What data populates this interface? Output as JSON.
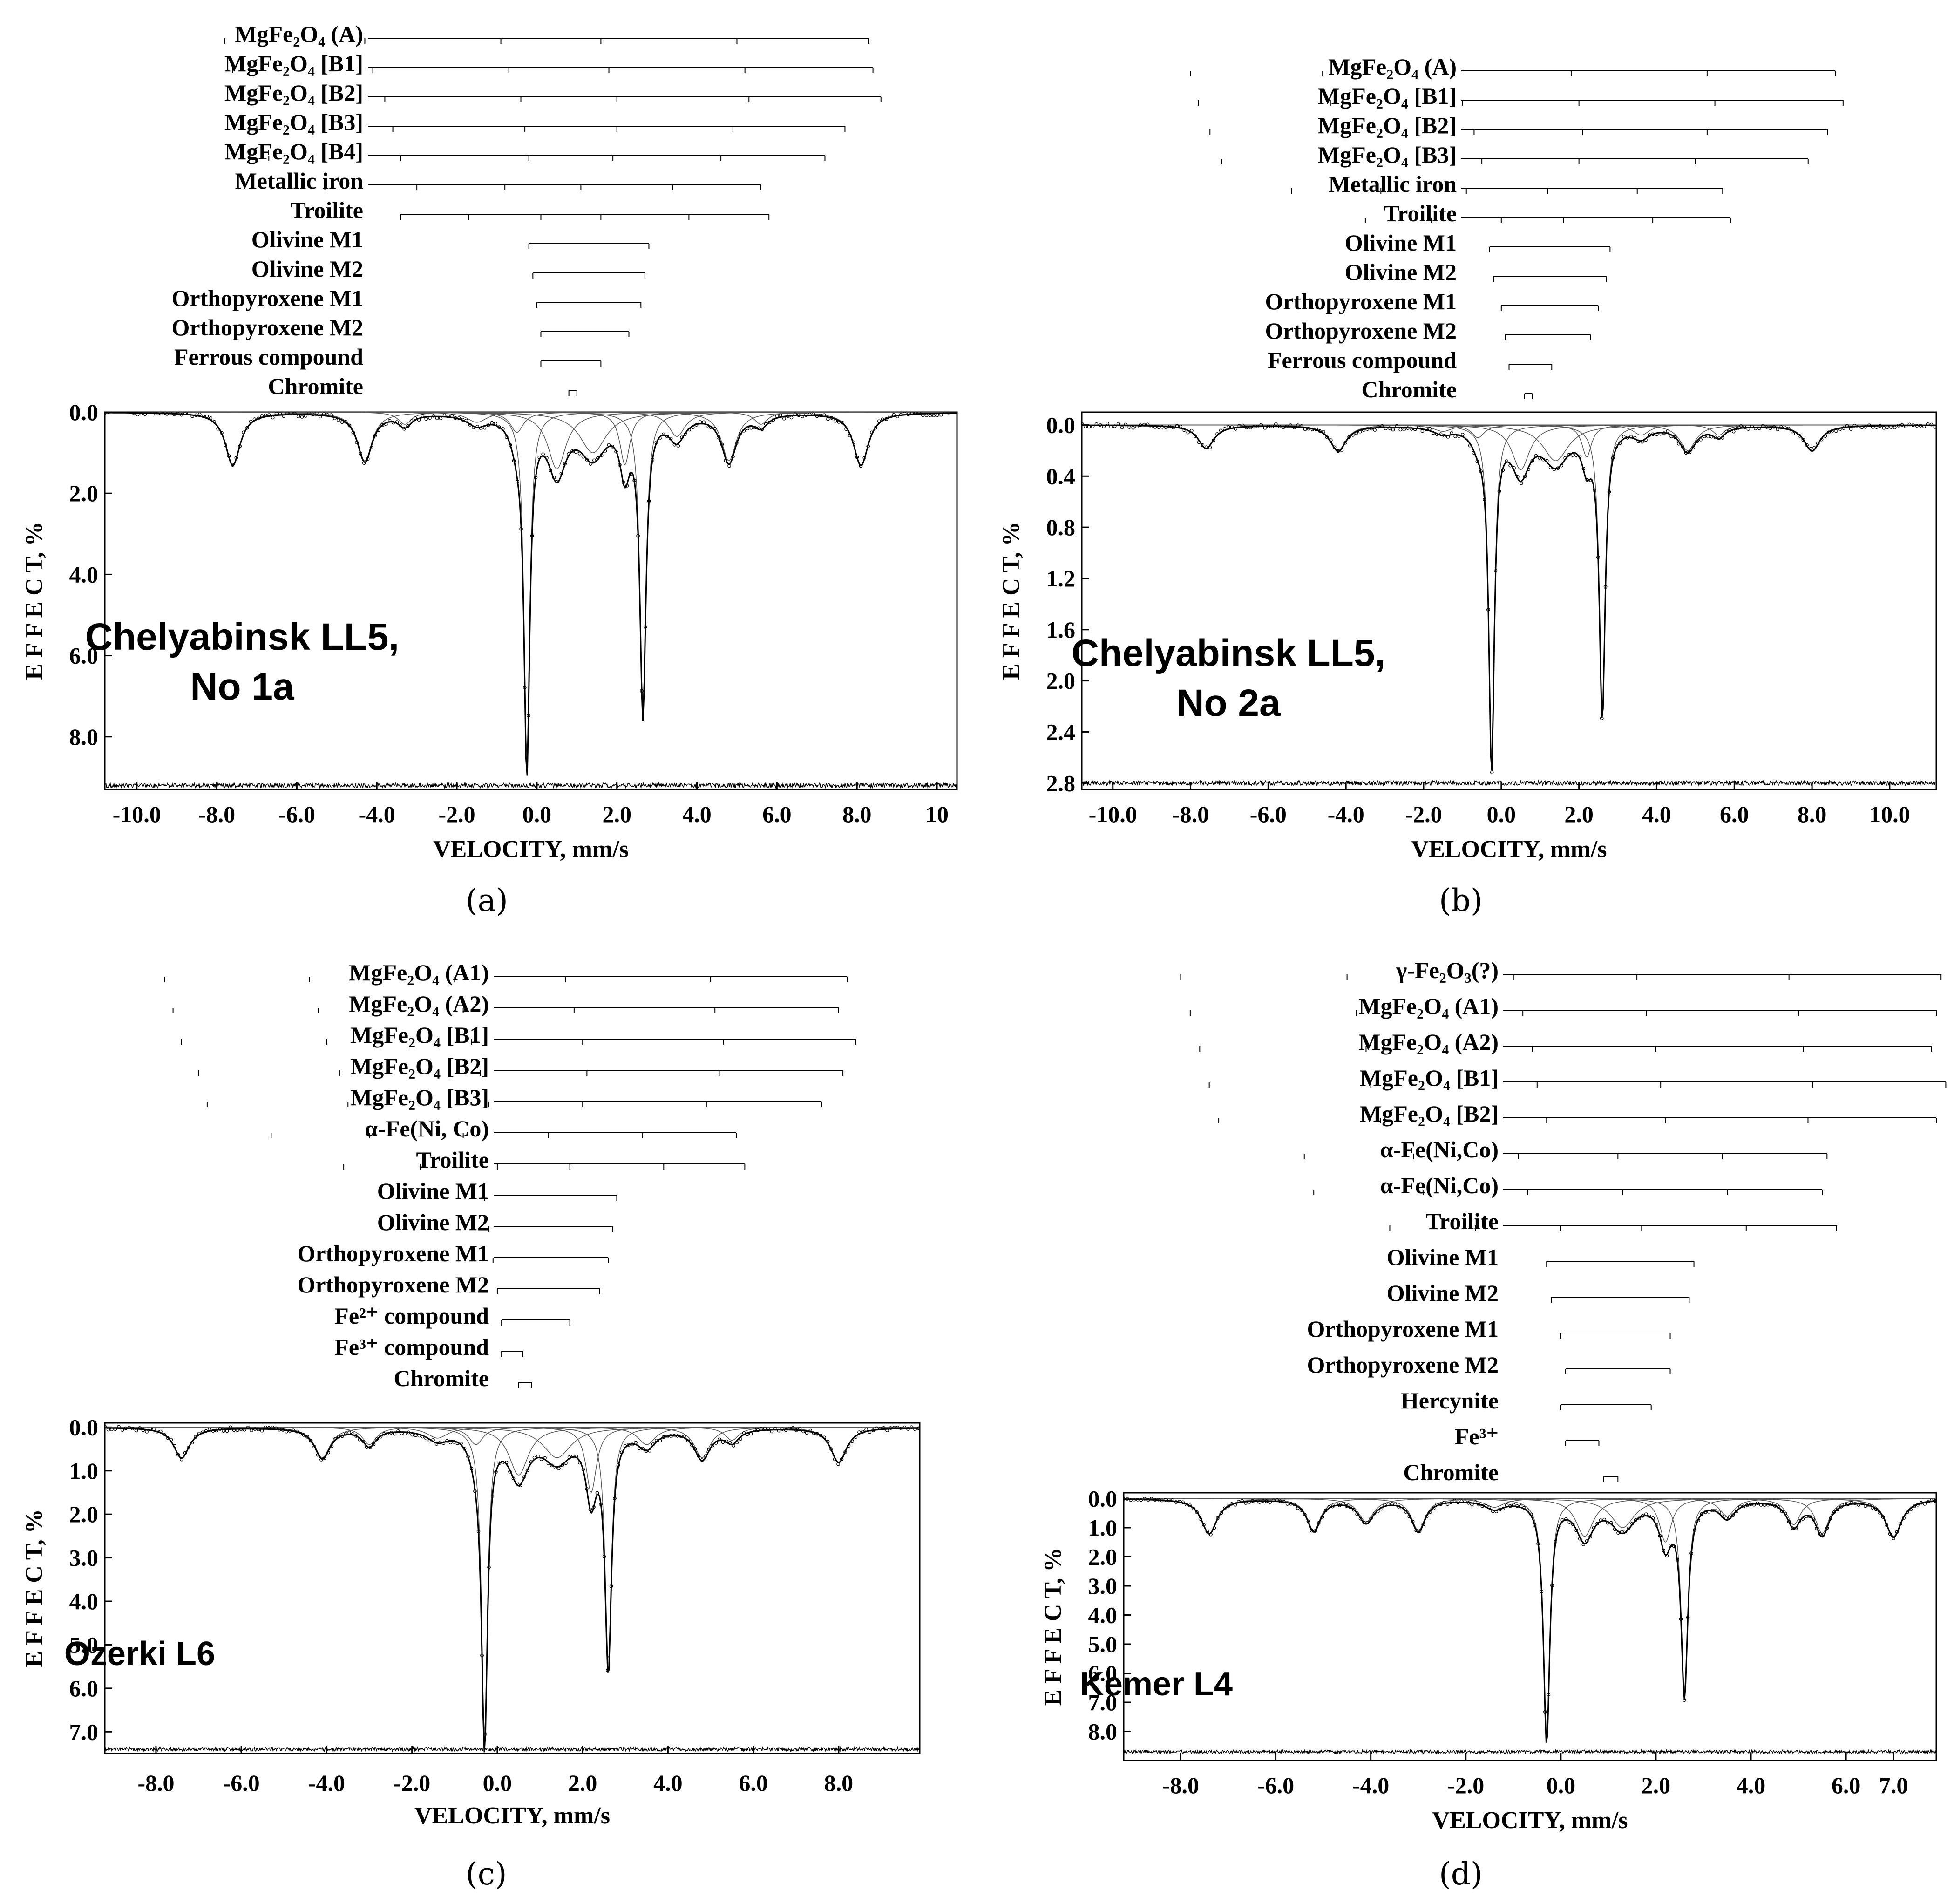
{
  "figures": [
    {
      "id": "a",
      "caption": "(a)",
      "sample_label": [
        "Chelyabinsk LL5,",
        "No 1a"
      ],
      "ylabel": "E F F E C T, %",
      "xlabel": "VELOCITY,  mm/s",
      "subspectra": [
        {
          "label": "MgFe₂O₄ (A)",
          "lines": [
            -7.8,
            -4.3,
            -0.9,
            1.6,
            5.0,
            8.3
          ]
        },
        {
          "label": "MgFe₂O₄ [B1]",
          "lines": [
            -7.6,
            -4.1,
            -0.7,
            1.8,
            5.2,
            8.4
          ]
        },
        {
          "label": "MgFe₂O₄ [B2]",
          "lines": [
            -7.2,
            -3.8,
            -0.4,
            2.0,
            5.3,
            8.6
          ]
        },
        {
          "label": "MgFe₂O₄ [B3]",
          "lines": [
            -7.0,
            -3.6,
            -0.3,
            2.0,
            4.9,
            7.7
          ]
        },
        {
          "label": "MgFe₂O₄ [B4]",
          "lines": [
            -6.7,
            -3.4,
            -0.2,
            1.9,
            4.6,
            7.2
          ]
        },
        {
          "label": "Metallic iron",
          "lines": [
            -5.3,
            -3.0,
            -0.8,
            1.1,
            3.4,
            5.6
          ]
        },
        {
          "label": "Troilite",
          "lines": [
            -3.4,
            -1.7,
            0.1,
            1.6,
            3.8,
            5.8
          ]
        },
        {
          "label": "Olivine M1",
          "lines": [
            -0.2,
            2.8
          ]
        },
        {
          "label": "Olivine M2",
          "lines": [
            -0.1,
            2.7
          ]
        },
        {
          "label": "Orthopyroxene M1",
          "lines": [
            0.0,
            2.6
          ]
        },
        {
          "label": "Orthopyroxene M2",
          "lines": [
            0.1,
            2.3
          ]
        },
        {
          "label": "Ferrous compound",
          "lines": [
            0.1,
            1.6
          ]
        },
        {
          "label": "Chromite",
          "lines": [
            0.8,
            1.0
          ]
        }
      ],
      "chart_data": {
        "type": "line",
        "xlabel": "VELOCITY,  mm/s",
        "ylabel": "E F F E C T, %",
        "xlim": [
          -10.8,
          10.5
        ],
        "ylim": [
          0.0,
          9.3
        ],
        "y_inverted": true,
        "xticks": [
          "-10.0",
          "-8.0",
          "-6.0",
          "-4.0",
          "-2.0",
          "0.0",
          "2.0",
          "4.0",
          "6.0",
          "8.0",
          "10"
        ],
        "xtick_values": [
          -10,
          -8,
          -6,
          -4,
          -2,
          0,
          2,
          4,
          6,
          8,
          10
        ],
        "yticks": [
          "0.0",
          "2.0",
          "4.0",
          "6.0",
          "8.0"
        ],
        "ytick_values": [
          0,
          2,
          4,
          6,
          8
        ],
        "peaks": [
          {
            "x": -7.6,
            "depth": 1.3,
            "w": 0.45
          },
          {
            "x": -4.3,
            "depth": 1.2,
            "w": 0.45
          },
          {
            "x": -3.3,
            "depth": 0.3,
            "w": 0.4
          },
          {
            "x": -1.5,
            "depth": 0.25,
            "w": 0.6
          },
          {
            "x": -0.5,
            "depth": 0.5,
            "w": 0.4
          },
          {
            "x": -0.25,
            "depth": 8.6,
            "w": 0.17
          },
          {
            "x": 0.5,
            "depth": 1.4,
            "w": 0.55
          },
          {
            "x": 1.4,
            "depth": 1.0,
            "w": 0.8
          },
          {
            "x": 2.2,
            "depth": 1.3,
            "w": 0.3
          },
          {
            "x": 2.65,
            "depth": 7.3,
            "w": 0.18
          },
          {
            "x": 3.5,
            "depth": 0.6,
            "w": 0.5
          },
          {
            "x": 4.8,
            "depth": 1.2,
            "w": 0.45
          },
          {
            "x": 5.6,
            "depth": 0.3,
            "w": 0.4
          },
          {
            "x": 8.1,
            "depth": 1.3,
            "w": 0.45
          }
        ],
        "residual_level": 9.2
      }
    },
    {
      "id": "b",
      "caption": "(b)",
      "sample_label": [
        "Chelyabinsk LL5,",
        "No 2a"
      ],
      "ylabel": "E F F E C T, %",
      "xlabel": "VELOCITY,  mm/s",
      "subspectra": [
        {
          "label": "MgFe₂O₄ (A)",
          "lines": [
            -8.0,
            -4.6,
            -1.2,
            1.8,
            5.3,
            8.6
          ]
        },
        {
          "label": "MgFe₂O₄ [B1]",
          "lines": [
            -7.8,
            -4.4,
            -1.0,
            2.0,
            5.5,
            8.8
          ]
        },
        {
          "label": "MgFe₂O₄ [B2]",
          "lines": [
            -7.5,
            -4.1,
            -0.7,
            2.1,
            5.3,
            8.4
          ]
        },
        {
          "label": "MgFe₂O₄ [B3]",
          "lines": [
            -7.2,
            -3.9,
            -0.5,
            2.0,
            5.0,
            7.9
          ]
        },
        {
          "label": "Metallic iron",
          "lines": [
            -5.4,
            -3.1,
            -0.9,
            1.2,
            3.5,
            5.7
          ]
        },
        {
          "label": "Troilite",
          "lines": [
            -3.5,
            -1.8,
            0.0,
            1.6,
            3.9,
            5.9
          ]
        },
        {
          "label": "Olivine M1",
          "lines": [
            -0.3,
            2.8
          ]
        },
        {
          "label": "Olivine M2",
          "lines": [
            -0.2,
            2.7
          ]
        },
        {
          "label": "Orthopyroxene M1",
          "lines": [
            0.0,
            2.5
          ]
        },
        {
          "label": "Orthopyroxene M2",
          "lines": [
            0.1,
            2.3
          ]
        },
        {
          "label": "Ferrous compound",
          "lines": [
            0.2,
            1.3
          ]
        },
        {
          "label": "Chromite",
          "lines": [
            0.6,
            0.8
          ]
        }
      ],
      "chart_data": {
        "type": "line",
        "xlabel": "VELOCITY,  mm/s",
        "ylabel": "E F F E C T, %",
        "xlim": [
          -10.8,
          11.2
        ],
        "ylim": [
          -0.1,
          2.85
        ],
        "y_inverted": true,
        "xticks": [
          "-10.0",
          "-8.0",
          "-6.0",
          "-4.0",
          "-2.0",
          "0.0",
          "2.0",
          "4.0",
          "6.0",
          "8.0",
          "10.0"
        ],
        "xtick_values": [
          -10,
          -8,
          -6,
          -4,
          -2,
          0,
          2,
          4,
          6,
          8,
          10
        ],
        "yticks": [
          "0.0",
          "0.4",
          "0.8",
          "1.2",
          "1.6",
          "2.0",
          "2.4",
          "2.8"
        ],
        "ytick_values": [
          0,
          0.4,
          0.8,
          1.2,
          1.6,
          2.0,
          2.4,
          2.8
        ],
        "peaks": [
          {
            "x": -7.6,
            "depth": 0.18,
            "w": 0.5
          },
          {
            "x": -4.2,
            "depth": 0.2,
            "w": 0.5
          },
          {
            "x": -1.5,
            "depth": 0.05,
            "w": 0.6
          },
          {
            "x": -0.6,
            "depth": 0.1,
            "w": 0.4
          },
          {
            "x": -0.25,
            "depth": 2.65,
            "w": 0.17
          },
          {
            "x": 0.5,
            "depth": 0.35,
            "w": 0.55
          },
          {
            "x": 1.4,
            "depth": 0.28,
            "w": 0.8
          },
          {
            "x": 2.2,
            "depth": 0.25,
            "w": 0.3
          },
          {
            "x": 2.6,
            "depth": 2.25,
            "w": 0.18
          },
          {
            "x": 3.6,
            "depth": 0.08,
            "w": 0.5
          },
          {
            "x": 4.8,
            "depth": 0.2,
            "w": 0.5
          },
          {
            "x": 5.6,
            "depth": 0.08,
            "w": 0.4
          },
          {
            "x": 8.0,
            "depth": 0.2,
            "w": 0.5
          }
        ],
        "residual_level": 2.8
      }
    },
    {
      "id": "c",
      "caption": "(c)",
      "sample_label": [
        "Ozerki L6"
      ],
      "ylabel": "E F F E C T, %",
      "xlabel": "VELOCITY,  mm/s",
      "subspectra": [
        {
          "label": "MgFe₂O₄ (A1)",
          "lines": [
            -7.8,
            -4.4,
            -1.0,
            1.6,
            5.0,
            8.2
          ]
        },
        {
          "label": "MgFe₂O₄ (A2)",
          "lines": [
            -7.6,
            -4.2,
            -0.8,
            1.8,
            5.1,
            8.0
          ]
        },
        {
          "label": "MgFe₂O₄ [B1]",
          "lines": [
            -7.4,
            -4.0,
            -0.6,
            2.0,
            5.3,
            8.4
          ]
        },
        {
          "label": "MgFe₂O₄ [B2]",
          "lines": [
            -7.0,
            -3.7,
            -0.4,
            2.1,
            5.2,
            8.1
          ]
        },
        {
          "label": "MgFe₂O₄ [B3]",
          "lines": [
            -6.8,
            -3.5,
            -0.2,
            2.0,
            4.9,
            7.6
          ]
        },
        {
          "label": "α-Fe(Ni, Co)",
          "lines": [
            -5.3,
            -3.0,
            -0.8,
            1.2,
            3.4,
            5.6
          ]
        },
        {
          "label": "Troilite",
          "lines": [
            -3.6,
            -1.8,
            0.0,
            1.7,
            3.9,
            5.8
          ]
        },
        {
          "label": "Olivine M1",
          "lines": [
            -0.3,
            2.8
          ]
        },
        {
          "label": "Olivine M2",
          "lines": [
            -0.2,
            2.7
          ]
        },
        {
          "label": "Orthopyroxene M1",
          "lines": [
            -0.1,
            2.6
          ]
        },
        {
          "label": "Orthopyroxene M2",
          "lines": [
            0.0,
            2.4
          ]
        },
        {
          "label": "Fe²⁺ compound",
          "lines": [
            0.1,
            1.7
          ]
        },
        {
          "label": "Fe³⁺ compound",
          "lines": [
            0.1,
            0.6
          ]
        },
        {
          "label": "Chromite",
          "lines": [
            0.5,
            0.8
          ]
        }
      ],
      "chart_data": {
        "type": "line",
        "xlabel": "VELOCITY,  mm/s",
        "ylabel": "E F F E C T, %",
        "xlim": [
          -9.2,
          9.9
        ],
        "ylim": [
          -0.1,
          7.5
        ],
        "y_inverted": true,
        "xticks": [
          "-8.0",
          "-6.0",
          "-4.0",
          "-2.0",
          "0.0",
          "2.0",
          "4.0",
          "6.0",
          "8.0"
        ],
        "xtick_values": [
          -8,
          -6,
          -4,
          -2,
          0,
          2,
          4,
          6,
          8
        ],
        "yticks": [
          "0.0",
          "1.0",
          "2.0",
          "3.0",
          "4.0",
          "5.0",
          "6.0",
          "7.0"
        ],
        "ytick_values": [
          0,
          1,
          2,
          3,
          4,
          5,
          6,
          7
        ],
        "peaks": [
          {
            "x": -7.4,
            "depth": 0.7,
            "w": 0.45
          },
          {
            "x": -4.1,
            "depth": 0.7,
            "w": 0.45
          },
          {
            "x": -3.0,
            "depth": 0.4,
            "w": 0.4
          },
          {
            "x": -1.4,
            "depth": 0.25,
            "w": 0.6
          },
          {
            "x": -0.5,
            "depth": 0.4,
            "w": 0.4
          },
          {
            "x": -0.3,
            "depth": 7.1,
            "w": 0.17
          },
          {
            "x": 0.5,
            "depth": 1.1,
            "w": 0.55
          },
          {
            "x": 1.4,
            "depth": 0.7,
            "w": 0.8
          },
          {
            "x": 2.2,
            "depth": 1.5,
            "w": 0.3
          },
          {
            "x": 2.6,
            "depth": 5.4,
            "w": 0.18
          },
          {
            "x": 3.5,
            "depth": 0.4,
            "w": 0.5
          },
          {
            "x": 4.8,
            "depth": 0.7,
            "w": 0.45
          },
          {
            "x": 5.5,
            "depth": 0.3,
            "w": 0.4
          },
          {
            "x": 8.0,
            "depth": 0.8,
            "w": 0.45
          }
        ],
        "residual_level": 7.4
      }
    },
    {
      "id": "d",
      "caption": "(d)",
      "sample_label": [
        "Kemer L4"
      ],
      "ylabel": "E F F E C T, %",
      "xlabel": "VELOCITY,  mm/s",
      "subspectra": [
        {
          "label": "γ-Fe₂O₃(?)",
          "lines": [
            -8.0,
            -4.5,
            -1.0,
            1.6,
            4.8,
            8.0
          ]
        },
        {
          "label": "MgFe₂O₄ (A1)",
          "lines": [
            -7.8,
            -4.3,
            -0.8,
            1.8,
            5.0,
            7.9
          ]
        },
        {
          "label": "MgFe₂O₄ (A2)",
          "lines": [
            -7.6,
            -4.1,
            -0.6,
            2.0,
            5.1,
            7.8
          ]
        },
        {
          "label": "MgFe₂O₄ [B1]",
          "lines": [
            -7.4,
            -4.0,
            -0.5,
            2.1,
            5.3,
            8.1
          ]
        },
        {
          "label": "MgFe₂O₄ [B2]",
          "lines": [
            -7.2,
            -3.8,
            -0.3,
            2.2,
            5.2,
            7.9
          ]
        },
        {
          "label": "α-Fe(Ni,Co)",
          "lines": [
            -5.4,
            -3.1,
            -0.9,
            1.2,
            3.4,
            5.6
          ]
        },
        {
          "label": "α-Fe(Ni,Co)",
          "lines": [
            -5.2,
            -2.9,
            -0.7,
            1.3,
            3.5,
            5.5
          ]
        },
        {
          "label": "Troilite",
          "lines": [
            -3.6,
            -1.8,
            0.0,
            1.7,
            3.9,
            5.8
          ]
        },
        {
          "label": "Olivine M1",
          "lines": [
            -0.3,
            2.8
          ]
        },
        {
          "label": "Olivine M2",
          "lines": [
            -0.2,
            2.7
          ]
        },
        {
          "label": "Orthopyroxene M1",
          "lines": [
            0.0,
            2.3
          ]
        },
        {
          "label": "Orthopyroxene M2",
          "lines": [
            0.1,
            2.3
          ]
        },
        {
          "label": "Hercynite",
          "lines": [
            0.0,
            1.9
          ]
        },
        {
          "label": "Fe³⁺",
          "lines": [
            0.1,
            0.8
          ]
        },
        {
          "label": "Chromite",
          "lines": [
            0.9,
            1.2
          ]
        }
      ],
      "chart_data": {
        "type": "line",
        "xlabel": "VELOCITY,  mm/s",
        "ylabel": "E F F E C T, %",
        "xlim": [
          -9.2,
          7.9
        ],
        "ylim": [
          -0.2,
          9.0
        ],
        "y_inverted": true,
        "xticks": [
          "-8.0",
          "-6.0",
          "-4.0",
          "-2.0",
          "0.0",
          "2.0",
          "4.0",
          "6.0",
          "7.0"
        ],
        "xtick_values": [
          -8,
          -6,
          -4,
          -2,
          0,
          2,
          4,
          6,
          7
        ],
        "yticks": [
          "0.0",
          "1.0",
          "2.0",
          "3.0",
          "4.0",
          "5.0",
          "6.0",
          "7.0",
          "8.0"
        ],
        "ytick_values": [
          0,
          1,
          2,
          3,
          4,
          5,
          6,
          7,
          8
        ],
        "peaks": [
          {
            "x": -7.4,
            "depth": 1.2,
            "w": 0.4
          },
          {
            "x": -5.2,
            "depth": 1.1,
            "w": 0.35
          },
          {
            "x": -4.1,
            "depth": 0.8,
            "w": 0.4
          },
          {
            "x": -3.0,
            "depth": 1.1,
            "w": 0.35
          },
          {
            "x": -1.4,
            "depth": 0.3,
            "w": 0.5
          },
          {
            "x": -0.3,
            "depth": 8.3,
            "w": 0.16
          },
          {
            "x": 0.5,
            "depth": 1.3,
            "w": 0.45
          },
          {
            "x": 1.3,
            "depth": 1.0,
            "w": 0.6
          },
          {
            "x": 2.2,
            "depth": 1.5,
            "w": 0.3
          },
          {
            "x": 2.6,
            "depth": 6.6,
            "w": 0.17
          },
          {
            "x": 3.5,
            "depth": 0.6,
            "w": 0.4
          },
          {
            "x": 4.9,
            "depth": 0.9,
            "w": 0.35
          },
          {
            "x": 5.5,
            "depth": 1.2,
            "w": 0.35
          },
          {
            "x": 7.0,
            "depth": 1.3,
            "w": 0.4
          }
        ],
        "residual_level": 8.7
      }
    }
  ]
}
